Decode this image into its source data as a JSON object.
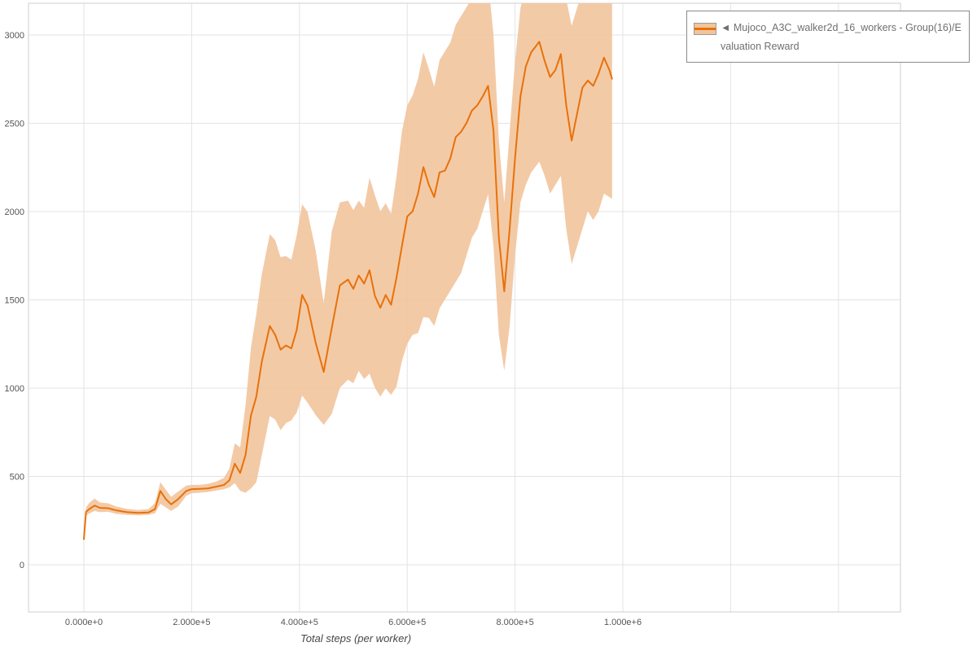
{
  "page": {
    "background": "#ffffff"
  },
  "legend": {
    "marker": "◄ ",
    "label": "Mujoco_A3C_walker2d_16_workers - Group(16)/Evaluation Reward"
  },
  "chart_data": {
    "type": "line",
    "title": "",
    "xlabel": "Total steps (per worker)",
    "ylabel": "",
    "grid": true,
    "legend_position": "top-right",
    "line_color": "#e8710a",
    "band_color": "#f2c49c",
    "grid_color": "#e3e3e3",
    "border_color": "#cfcfcf",
    "xlim": [
      0,
      1000000
    ],
    "ylim": [
      0,
      3000
    ],
    "x_tick_values": [
      0,
      200000,
      400000,
      600000,
      800000,
      1000000
    ],
    "x_tick_labels": [
      "0.000e+0",
      "2.000e+5",
      "4.000e+5",
      "6.000e+5",
      "8.000e+5",
      "1.000e+6"
    ],
    "y_ticks": [
      0,
      500,
      1000,
      1500,
      2000,
      2500,
      3000
    ],
    "series": [
      {
        "name": "Mujoco_A3C_walker2d_16_workers - Group(16)/Evaluation Reward",
        "x": [
          0,
          4000,
          10000,
          20000,
          30000,
          45000,
          60000,
          80000,
          100000,
          120000,
          132000,
          142000,
          152000,
          162000,
          175000,
          190000,
          200000,
          215000,
          230000,
          245000,
          260000,
          270000,
          280000,
          290000,
          300000,
          310000,
          320000,
          330000,
          345000,
          355000,
          365000,
          375000,
          385000,
          395000,
          405000,
          415000,
          430000,
          445000,
          460000,
          475000,
          490000,
          500000,
          510000,
          520000,
          530000,
          540000,
          550000,
          560000,
          570000,
          580000,
          590000,
          600000,
          610000,
          620000,
          630000,
          640000,
          650000,
          660000,
          670000,
          680000,
          690000,
          700000,
          710000,
          720000,
          730000,
          740000,
          750000,
          760000,
          770000,
          780000,
          790000,
          800000,
          810000,
          820000,
          830000,
          840000,
          845000,
          855000,
          865000,
          875000,
          885000,
          895000,
          905000,
          915000,
          925000,
          935000,
          945000,
          955000,
          965000,
          975000,
          980000
        ],
        "mean": [
          145,
          300,
          315,
          335,
          322,
          320,
          308,
          298,
          294,
          296,
          315,
          418,
          372,
          342,
          372,
          418,
          428,
          430,
          432,
          442,
          452,
          478,
          572,
          520,
          622,
          845,
          952,
          1148,
          1352,
          1302,
          1218,
          1242,
          1225,
          1330,
          1528,
          1468,
          1258,
          1092,
          1342,
          1582,
          1615,
          1562,
          1638,
          1592,
          1668,
          1522,
          1455,
          1528,
          1472,
          1625,
          1802,
          1972,
          2002,
          2102,
          2252,
          2152,
          2082,
          2222,
          2232,
          2302,
          2422,
          2452,
          2502,
          2572,
          2602,
          2652,
          2712,
          2458,
          1852,
          1548,
          1902,
          2302,
          2652,
          2822,
          2902,
          2942,
          2962,
          2852,
          2762,
          2802,
          2892,
          2602,
          2402,
          2552,
          2702,
          2742,
          2712,
          2782,
          2872,
          2802,
          2752
        ],
        "lower": [
          140,
          278,
          290,
          305,
          298,
          300,
          288,
          282,
          280,
          282,
          292,
          345,
          325,
          305,
          330,
          390,
          405,
          408,
          412,
          420,
          428,
          438,
          462,
          418,
          408,
          432,
          468,
          618,
          842,
          822,
          762,
          802,
          818,
          862,
          958,
          918,
          848,
          792,
          855,
          1002,
          1048,
          1028,
          1098,
          1052,
          1082,
          1002,
          952,
          998,
          962,
          1008,
          1152,
          1252,
          1302,
          1312,
          1402,
          1398,
          1352,
          1452,
          1502,
          1552,
          1602,
          1652,
          1752,
          1852,
          1902,
          2002,
          2098,
          1802,
          1302,
          1098,
          1352,
          1752,
          2052,
          2152,
          2222,
          2262,
          2282,
          2202,
          2102,
          2152,
          2202,
          1902,
          1702,
          1802,
          1902,
          2002,
          1952,
          2002,
          2102,
          2082,
          2072
        ],
        "upper": [
          152,
          325,
          350,
          375,
          352,
          348,
          330,
          316,
          310,
          315,
          350,
          468,
          425,
          385,
          415,
          448,
          452,
          452,
          458,
          470,
          492,
          545,
          688,
          665,
          905,
          1230,
          1420,
          1642,
          1872,
          1838,
          1742,
          1748,
          1728,
          1868,
          2042,
          1998,
          1782,
          1482,
          1888,
          2052,
          2062,
          2008,
          2062,
          2022,
          2192,
          2092,
          2002,
          2048,
          1988,
          2198,
          2452,
          2602,
          2658,
          2752,
          2902,
          2808,
          2708,
          2858,
          2908,
          2958,
          3058,
          3108,
          3158,
          3208,
          3242,
          3282,
          3308,
          3002,
          2402,
          2052,
          2452,
          2852,
          3152,
          3282,
          3342,
          3382,
          3402,
          3352,
          3302,
          3322,
          3352,
          3202,
          3052,
          3152,
          3252,
          3302,
          3282,
          3322,
          3352,
          3302,
          3252
        ]
      }
    ]
  }
}
